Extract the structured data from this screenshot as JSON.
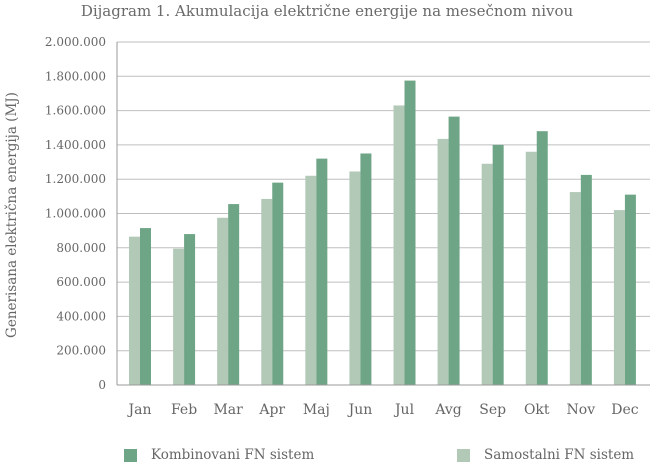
{
  "chart_data": {
    "type": "bar",
    "title": "Dijagram 1. Akumulacija električne energije na mesečnom nivou",
    "ylabel": "Generisana električna energija (MJ)",
    "xlabel": "",
    "categories": [
      "Jan",
      "Feb",
      "Mar",
      "Apr",
      "Maj",
      "Jun",
      "Jul",
      "Avg",
      "Sep",
      "Okt",
      "Nov",
      "Dec"
    ],
    "ylim": [
      0,
      2000000
    ],
    "yticks": [
      0,
      200000,
      400000,
      600000,
      800000,
      1000000,
      1200000,
      1400000,
      1600000,
      1800000,
      2000000
    ],
    "ytick_labels": [
      "0",
      "200.000",
      "400.000",
      "600.000",
      "800.000",
      "1.000.000",
      "1.200.000",
      "1.400.000",
      "1.600.000",
      "1.800.000",
      "2.000.000"
    ],
    "grid": "horizontal",
    "legend_position": "bottom",
    "series": [
      {
        "name": "Samostalni FN sistem",
        "color": "#b2c9b8",
        "values": [
          865000,
          795000,
          975000,
          1085000,
          1220000,
          1245000,
          1630000,
          1435000,
          1290000,
          1360000,
          1125000,
          1020000
        ]
      },
      {
        "name": "Kombinovani FN sistem",
        "color": "#6fa587",
        "values": [
          915000,
          880000,
          1055000,
          1180000,
          1320000,
          1350000,
          1775000,
          1565000,
          1400000,
          1480000,
          1225000,
          1110000
        ]
      }
    ]
  }
}
